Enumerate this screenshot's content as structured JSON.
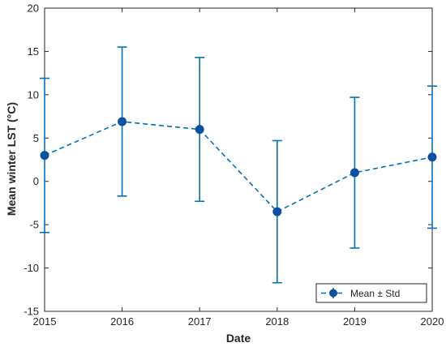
{
  "chart_data": {
    "type": "line",
    "xlabel": "Date",
    "ylabel": "Mean winter LST (°C)",
    "x": [
      "2015",
      "2016",
      "2017",
      "2018",
      "2019",
      "2020"
    ],
    "xlim": [
      2015,
      2020
    ],
    "ylim": [
      -15,
      20
    ],
    "yticks": [
      -15,
      -10,
      -5,
      0,
      5,
      10,
      15,
      20
    ],
    "grid": false,
    "legend_position": "bottom-right",
    "series": [
      {
        "name": "Mean ± Std",
        "mean": [
          3.0,
          6.9,
          6.0,
          -3.5,
          1.0,
          2.8
        ],
        "std": [
          8.9,
          8.6,
          8.3,
          8.2,
          8.7,
          8.2
        ],
        "color": "#0072BD",
        "marker_color": "#0D4FA0",
        "line_style": "dashed"
      }
    ]
  }
}
